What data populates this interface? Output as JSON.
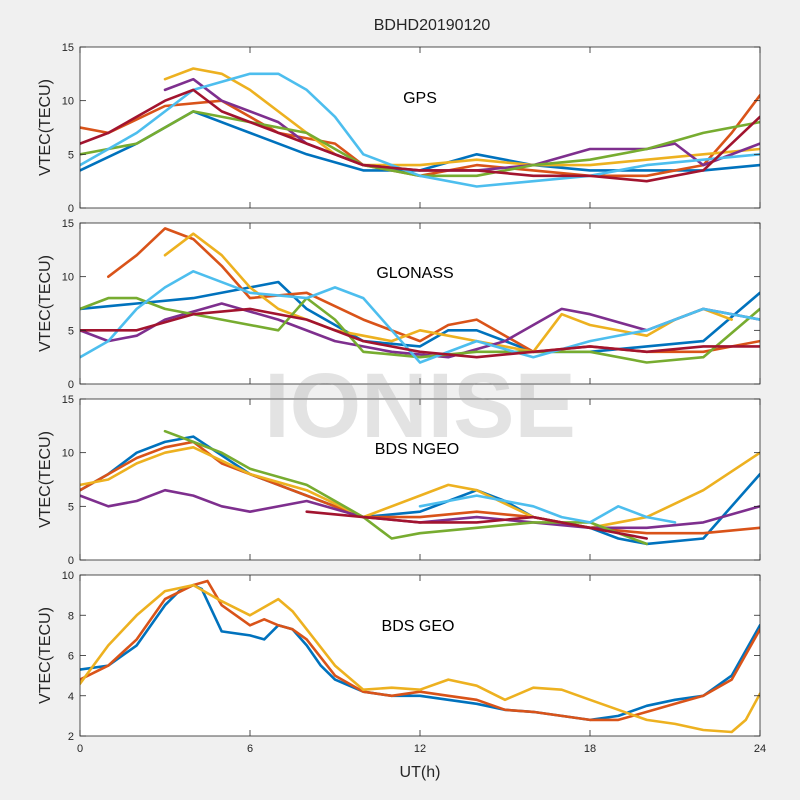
{
  "figure": {
    "title": "BDHD20190120",
    "watermark": "IONISE",
    "x_ticks": [
      "0",
      "6",
      "12",
      "18",
      "24"
    ],
    "xlabel": "UT(h)"
  },
  "chart_data": [
    {
      "type": "line",
      "panel_label": "GPS",
      "ylabel": "VTEC(TECU)",
      "xlim": [
        0,
        24
      ],
      "ylim": [
        0,
        15
      ],
      "y_ticks": [
        "0",
        "5",
        "10",
        "15"
      ],
      "series": [
        {
          "color": "#0072BD",
          "x": [
            0,
            2,
            4,
            6,
            8,
            10,
            12,
            14,
            16,
            18,
            20,
            22,
            24
          ],
          "y": [
            3.5,
            6,
            9,
            7,
            5,
            3.5,
            3.5,
            5,
            4,
            3.5,
            3.5,
            3.5,
            4
          ]
        },
        {
          "color": "#D95319",
          "x": [
            0,
            1,
            3,
            5,
            7,
            9,
            10,
            12,
            14,
            16,
            18,
            20,
            22,
            23,
            24
          ],
          "y": [
            7.5,
            7,
            9.5,
            10,
            7,
            6,
            4,
            3,
            4,
            3.5,
            3,
            3,
            4,
            7,
            10.5
          ]
        },
        {
          "color": "#EDB120",
          "x": [
            3,
            4,
            5,
            6,
            7,
            8,
            9,
            10,
            12,
            14,
            16,
            18,
            20,
            22,
            24
          ],
          "y": [
            12,
            13,
            12.5,
            11,
            9,
            7,
            5,
            4,
            4,
            4.5,
            4,
            4,
            4.5,
            5,
            5.5
          ]
        },
        {
          "color": "#7E2F8E",
          "x": [
            3,
            4,
            5,
            6,
            7,
            8,
            9,
            10,
            12,
            14,
            16,
            18,
            20,
            21,
            22,
            24
          ],
          "y": [
            11,
            12,
            10,
            9,
            8,
            6,
            5,
            4,
            3.5,
            3.5,
            4,
            5.5,
            5.5,
            6,
            4,
            6
          ]
        },
        {
          "color": "#77AC30",
          "x": [
            0,
            1,
            2,
            4,
            6,
            8,
            10,
            12,
            14,
            16,
            18,
            20,
            22,
            24
          ],
          "y": [
            5,
            5.5,
            6,
            9,
            8,
            7,
            4,
            3,
            3,
            4,
            4.5,
            5.5,
            7,
            8
          ]
        },
        {
          "color": "#4DBEEE",
          "x": [
            0,
            2,
            4,
            6,
            7,
            8,
            9,
            10,
            12,
            14,
            16,
            18,
            20,
            22,
            24
          ],
          "y": [
            4,
            7,
            11,
            12.5,
            12.5,
            11,
            8.5,
            5,
            3,
            2,
            2.5,
            3,
            4,
            4.5,
            5
          ]
        },
        {
          "color": "#A2142F",
          "x": [
            0,
            1,
            3,
            4,
            5,
            6,
            8,
            10,
            12,
            14,
            16,
            18,
            20,
            22,
            24
          ],
          "y": [
            6,
            7,
            10,
            11,
            9,
            8,
            6,
            4,
            3.5,
            3.5,
            3,
            3,
            2.5,
            3.5,
            8.5
          ]
        }
      ]
    },
    {
      "type": "line",
      "panel_label": "GLONASS",
      "ylabel": "VTEC(TECU)",
      "xlim": [
        0,
        24
      ],
      "ylim": [
        0,
        15
      ],
      "y_ticks": [
        "0",
        "5",
        "10",
        "15"
      ],
      "series": [
        {
          "color": "#0072BD",
          "x": [
            0,
            2,
            4,
            6,
            7,
            8,
            10,
            12,
            13,
            14,
            16,
            18,
            20,
            22,
            24
          ],
          "y": [
            7,
            7.5,
            8,
            9,
            9.5,
            7,
            4,
            3.5,
            5,
            5,
            3,
            3,
            3.5,
            4,
            8.5
          ]
        },
        {
          "color": "#D95319",
          "x": [
            1,
            2,
            3,
            4,
            5,
            6,
            8,
            10,
            12,
            13,
            14,
            16,
            18,
            20,
            22,
            24
          ],
          "y": [
            10,
            12,
            14.5,
            13.5,
            11,
            8,
            8.5,
            6,
            4,
            5.5,
            6,
            3,
            3.5,
            3,
            3,
            4
          ]
        },
        {
          "color": "#EDB120",
          "x": [
            3,
            4,
            5,
            6,
            7,
            9,
            11,
            12,
            14,
            16,
            17,
            18,
            20,
            21,
            22,
            23
          ],
          "y": [
            12,
            14,
            12,
            9,
            7,
            5,
            4,
            5,
            4,
            3,
            6.5,
            5.5,
            4.5,
            6,
            7,
            6
          ]
        },
        {
          "color": "#7E2F8E",
          "x": [
            0,
            1,
            2,
            3,
            5,
            7,
            9,
            11,
            13,
            15,
            17,
            18,
            20,
            22,
            23,
            24
          ],
          "y": [
            5,
            4,
            4.5,
            6,
            7.5,
            6,
            4,
            3,
            2.5,
            4,
            7,
            6.5,
            5,
            7,
            6.5,
            6
          ]
        },
        {
          "color": "#77AC30",
          "x": [
            0,
            1,
            2,
            3,
            5,
            7,
            8,
            9,
            10,
            12,
            14,
            16,
            18,
            20,
            22,
            24
          ],
          "y": [
            7,
            8,
            8,
            7,
            6,
            5,
            8,
            6,
            3,
            2.5,
            3,
            3,
            3,
            2,
            2.5,
            7
          ]
        },
        {
          "color": "#4DBEEE",
          "x": [
            0,
            1,
            2,
            3,
            4,
            6,
            8,
            9,
            10,
            11,
            12,
            14,
            16,
            18,
            20,
            22,
            24
          ],
          "y": [
            2.5,
            4,
            7,
            9,
            10.5,
            8.5,
            8,
            9,
            8,
            5,
            2,
            4,
            2.5,
            4,
            5,
            7,
            6
          ]
        },
        {
          "color": "#A2142F",
          "x": [
            0,
            2,
            4,
            6,
            8,
            10,
            12,
            14,
            16,
            18,
            20,
            22,
            24
          ],
          "y": [
            5,
            5,
            6.5,
            7,
            6,
            4,
            3,
            2.5,
            3,
            3.5,
            3,
            3.5,
            3.5
          ]
        }
      ]
    },
    {
      "type": "line",
      "panel_label": "BDS NGEO",
      "ylabel": "VTEC(TECU)",
      "xlim": [
        0,
        24
      ],
      "ylim": [
        0,
        15
      ],
      "y_ticks": [
        "0",
        "5",
        "10",
        "15"
      ],
      "series": [
        {
          "color": "#0072BD",
          "x": [
            0,
            1,
            2,
            3,
            4,
            6,
            8,
            10,
            12,
            13,
            14,
            15,
            16,
            18,
            19,
            20,
            22,
            24
          ],
          "y": [
            6.5,
            8,
            10,
            11,
            11.5,
            8,
            6,
            4,
            4.5,
            5.5,
            6.5,
            5.5,
            4,
            3,
            2,
            1.5,
            2,
            8
          ]
        },
        {
          "color": "#D95319",
          "x": [
            0,
            1,
            2,
            3,
            4,
            5,
            6,
            8,
            10,
            12,
            14,
            16,
            18,
            20,
            22,
            24
          ],
          "y": [
            6.5,
            8,
            9.5,
            10.5,
            11,
            9,
            8,
            6,
            4,
            4,
            4.5,
            4,
            3,
            2.5,
            2.5,
            3
          ]
        },
        {
          "color": "#EDB120",
          "x": [
            0,
            1,
            2,
            3,
            4,
            6,
            8,
            10,
            12,
            13,
            14,
            16,
            18,
            20,
            22,
            24
          ],
          "y": [
            7,
            7.5,
            9,
            10,
            10.5,
            8,
            6.5,
            4,
            6,
            7,
            6.5,
            4,
            3,
            4,
            6.5,
            10
          ]
        },
        {
          "color": "#7E2F8E",
          "x": [
            0,
            1,
            2,
            3,
            4,
            5,
            6,
            8,
            10,
            12,
            14,
            16,
            18,
            20,
            22,
            24
          ],
          "y": [
            6,
            5,
            5.5,
            6.5,
            6,
            5,
            4.5,
            5.5,
            4,
            3.5,
            4,
            3.5,
            3,
            3,
            3.5,
            5
          ]
        },
        {
          "color": "#77AC30",
          "x": [
            3,
            4,
            5,
            6,
            8,
            10,
            11,
            12,
            14,
            16,
            18,
            20
          ],
          "y": [
            12,
            11,
            10,
            8.5,
            7,
            4,
            2,
            2.5,
            3,
            3.5,
            3.5,
            1.5
          ]
        },
        {
          "color": "#4DBEEE",
          "x": [
            12,
            14,
            16,
            17,
            18,
            19,
            20,
            21
          ],
          "y": [
            5,
            6,
            5,
            4,
            3.5,
            5,
            4,
            3.5
          ]
        },
        {
          "color": "#A2142F",
          "x": [
            8,
            10,
            12,
            14,
            16,
            18,
            20
          ],
          "y": [
            4.5,
            4,
            3.5,
            3.5,
            4,
            3,
            2
          ]
        }
      ]
    },
    {
      "type": "line",
      "panel_label": "BDS GEO",
      "ylabel": "VTEC(TECU)",
      "xlim": [
        0,
        24
      ],
      "ylim": [
        2,
        10
      ],
      "y_ticks": [
        "2",
        "4",
        "6",
        "8",
        "10"
      ],
      "series": [
        {
          "color": "#0072BD",
          "x": [
            0,
            1,
            2,
            3,
            3.5,
            4,
            4.3,
            5,
            6,
            6.5,
            7,
            7.5,
            8,
            8.5,
            9,
            10,
            11,
            12,
            13,
            14,
            15,
            16,
            17,
            18,
            19,
            20,
            21,
            22,
            23,
            24
          ],
          "y": [
            5.3,
            5.5,
            6.5,
            8.5,
            9.2,
            9.5,
            9.3,
            7.2,
            7,
            6.8,
            7.5,
            7.3,
            6.5,
            5.5,
            4.8,
            4.2,
            4,
            4,
            3.8,
            3.6,
            3.3,
            3.2,
            3,
            2.8,
            3,
            3.5,
            3.8,
            4,
            5,
            7.5
          ]
        },
        {
          "color": "#D95319",
          "x": [
            0,
            1,
            2,
            3,
            4,
            4.5,
            5,
            6,
            6.5,
            7,
            7.5,
            8,
            9,
            10,
            11,
            12,
            13,
            14,
            15,
            16,
            17,
            18,
            19,
            20,
            21,
            22,
            23,
            24
          ],
          "y": [
            4.8,
            5.5,
            6.8,
            8.8,
            9.5,
            9.7,
            8.5,
            7.5,
            7.8,
            7.5,
            7.3,
            6.8,
            5,
            4.2,
            4,
            4.2,
            4,
            3.8,
            3.3,
            3.2,
            3,
            2.8,
            2.8,
            3.2,
            3.6,
            4,
            4.8,
            7.3
          ]
        },
        {
          "color": "#EDB120",
          "x": [
            0,
            1,
            2,
            3,
            4,
            5,
            6,
            7,
            7.5,
            8,
            9,
            10,
            11,
            12,
            13,
            14,
            15,
            16,
            17,
            18,
            19,
            20,
            21,
            22,
            23,
            23.5,
            24
          ],
          "y": [
            4.6,
            6.5,
            8,
            9.2,
            9.5,
            8.7,
            8,
            8.8,
            8.2,
            7.3,
            5.5,
            4.3,
            4.4,
            4.3,
            4.8,
            4.5,
            3.8,
            4.4,
            4.3,
            3.8,
            3.3,
            2.8,
            2.6,
            2.3,
            2.2,
            2.8,
            4.1
          ]
        }
      ]
    }
  ]
}
